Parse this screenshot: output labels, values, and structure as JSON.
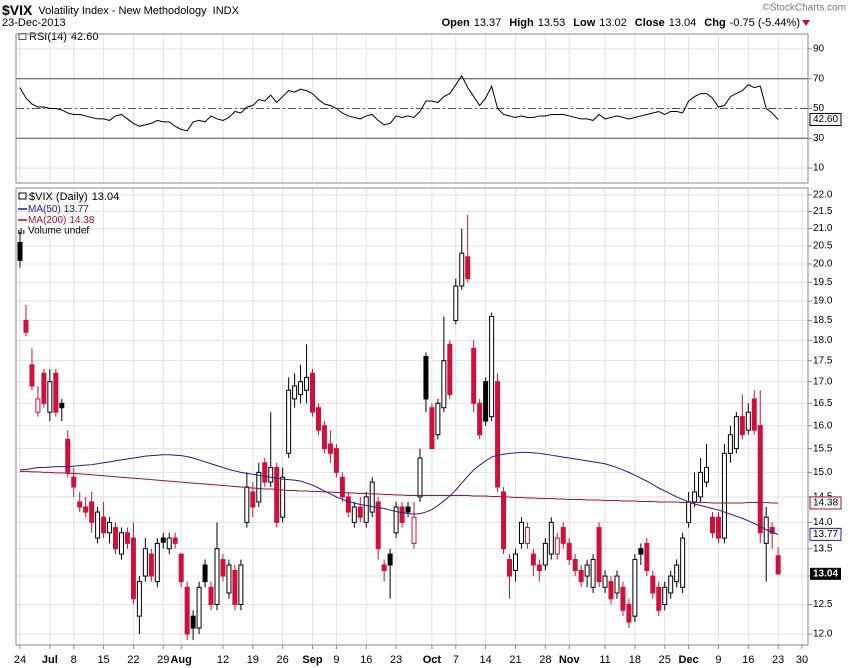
{
  "header": {
    "symbol": "$VIX",
    "name": "Volatility Index - New Methodology",
    "exchange": "INDX",
    "date": "23-Dec-2013",
    "copyright": "©StockCharts.com",
    "quote": [
      {
        "label": "Open",
        "value": "13.37"
      },
      {
        "label": "High",
        "value": "13.53"
      },
      {
        "label": "Low",
        "value": "13.02"
      },
      {
        "label": "Close",
        "value": "13.04"
      },
      {
        "label": "Chg",
        "value": "-0.75 (-5.44%)"
      }
    ]
  },
  "chart_data": [
    {
      "type": "line",
      "ylim": [
        0,
        100
      ],
      "yticks": [
        10,
        30,
        50,
        70,
        90
      ],
      "grid": true,
      "levels": [
        {
          "value": 30,
          "style": "solid"
        },
        {
          "value": 50,
          "style": "dashdot"
        },
        {
          "value": 70,
          "style": "solid"
        }
      ],
      "series": [
        {
          "name": "RSI(14)",
          "color": "#000000",
          "values": [
            64,
            57,
            53,
            51,
            51,
            50,
            50,
            49,
            47,
            46,
            46,
            45,
            44,
            43,
            43,
            42,
            45,
            46,
            43,
            40,
            38,
            39,
            40,
            42,
            41,
            41,
            38,
            36,
            35,
            41,
            42,
            41,
            45,
            43,
            42,
            44,
            48,
            47,
            51,
            52,
            56,
            55,
            59,
            54,
            58,
            62,
            61,
            63,
            62,
            60,
            56,
            53,
            52,
            50,
            47,
            45,
            44,
            43,
            45,
            46,
            42,
            39,
            40,
            45,
            44,
            45,
            44,
            48,
            55,
            55,
            54,
            58,
            60,
            66,
            72,
            64,
            58,
            52,
            57,
            65,
            50,
            46,
            45,
            44,
            45,
            44,
            44,
            45,
            45,
            46,
            46,
            46,
            45,
            44,
            43,
            43,
            42,
            46,
            43,
            44,
            45,
            44,
            43,
            44,
            45,
            46,
            47,
            48,
            46,
            48,
            48,
            47,
            55,
            58,
            60,
            60,
            57,
            51,
            52,
            58,
            60,
            62,
            66,
            64,
            65,
            50,
            47,
            42.6
          ],
          "value_labels": {
            "127": "42.60"
          }
        }
      ]
    },
    {
      "type": "candlestick",
      "title": "$VIX (Daily)",
      "volume_label": "Volume undef",
      "log_scale": true,
      "grid": true,
      "up_color": "#000000",
      "down_color": "#d0103a",
      "ylim": [
        11.82,
        22.21
      ],
      "yticks": [
        {
          "value": 12,
          "label": "12.0"
        },
        12.5,
        {
          "value": 13,
          "label": "13.0"
        },
        13.5,
        {
          "value": 14,
          "label": "14.0"
        },
        14.5,
        {
          "value": 15,
          "label": "15.0"
        },
        15.5,
        {
          "value": 16,
          "label": "16.0"
        },
        16.5,
        {
          "value": 17,
          "label": "17.0"
        },
        17.5,
        {
          "value": 18,
          "label": "18.0"
        },
        18.5,
        {
          "value": 19,
          "label": "19.0"
        },
        19.5,
        {
          "value": 20,
          "label": "20.0"
        },
        20.5,
        {
          "value": 21,
          "label": "21.0"
        },
        21.5,
        {
          "value": 22,
          "label": "22.0"
        }
      ],
      "xlim": [
        -0.67,
        132
      ],
      "xticks": [
        {
          "value": 0,
          "label": "24"
        },
        {
          "value": 5,
          "label": "Jul"
        },
        {
          "value": 9,
          "label": "8"
        },
        {
          "value": 14,
          "label": "15"
        },
        {
          "value": 19,
          "label": "22"
        },
        {
          "value": 24,
          "label": "29"
        },
        {
          "value": 27,
          "label": "Aug"
        },
        {
          "value": 34,
          "label": "12"
        },
        {
          "value": 39,
          "label": "19"
        },
        {
          "value": 44,
          "label": "26"
        },
        {
          "value": 49,
          "label": "Sep"
        },
        {
          "value": 53,
          "label": "9"
        },
        {
          "value": 58,
          "label": "16"
        },
        {
          "value": 63,
          "label": "23"
        },
        {
          "value": 69,
          "label": "Oct"
        },
        {
          "value": 73,
          "label": "7"
        },
        {
          "value": 78,
          "label": "14"
        },
        {
          "value": 83,
          "label": "21"
        },
        {
          "value": 88,
          "label": "28"
        },
        {
          "value": 92,
          "label": "Nov"
        },
        {
          "value": 98,
          "label": "11"
        },
        {
          "value": 103,
          "label": "18"
        },
        {
          "value": 108,
          "label": "25"
        },
        {
          "value": 112,
          "label": "Dec"
        },
        {
          "value": 117,
          "label": "9"
        },
        {
          "value": 122,
          "label": "16"
        },
        {
          "value": 127,
          "label": "23"
        },
        {
          "value": 131,
          "label": "30"
        }
      ],
      "open": [
        20.6,
        18.5,
        17.4,
        16.3,
        17.2,
        16.3,
        17.2,
        16.5,
        15.7,
        14.9,
        14.4,
        14.3,
        14.4,
        13.7,
        14.1,
        13.8,
        13.9,
        13.4,
        13.8,
        13.7,
        12.3,
        13.0,
        13.4,
        12.9,
        13.7,
        13.5,
        13.7,
        13.4,
        12.8,
        12.3,
        12.1,
        13.2,
        12.8,
        12.5,
        13.3,
        12.7,
        13.1,
        12.5,
        14.0,
        14.6,
        14.4,
        15.2,
        14.8,
        15.1,
        14.1,
        15.4,
        16.6,
        16.7,
        16.8,
        17.2,
        16.4,
        16.0,
        15.6,
        15.5,
        14.9,
        14.5,
        14.0,
        14.3,
        14.0,
        14.2,
        14.4,
        13.2,
        13.4,
        13.8,
        14.3,
        14.3,
        13.6,
        14.5,
        17.6,
        16.4,
        15.8,
        16.4,
        17.9,
        18.5,
        19.4,
        20.2,
        17.8,
        16.5,
        17.0,
        16.2,
        17.0,
        14.6,
        13.3,
        13.1,
        13.6,
        13.6,
        13.4,
        13.2,
        13.2,
        13.4,
        13.4,
        13.9,
        13.6,
        13.3,
        13.1,
        13.0,
        12.8,
        13.9,
        12.8,
        12.9,
        12.7,
        12.8,
        12.5,
        12.3,
        13.5,
        13.6,
        13.0,
        12.8,
        12.5,
        12.7,
        12.9,
        12.8,
        14.0,
        14.4,
        14.5,
        14.8,
        14.1,
        14.1,
        13.7,
        15.4,
        15.5,
        16.2,
        15.9,
        16.6,
        16.0,
        13.6,
        13.9,
        13.37
      ],
      "high": [
        20.9,
        18.9,
        17.8,
        16.9,
        17.3,
        17.3,
        17.3,
        16.6,
        15.9,
        15.1,
        14.6,
        14.5,
        14.6,
        14.3,
        14.4,
        14.1,
        14.0,
        13.9,
        13.9,
        14.0,
        13.0,
        13.7,
        13.5,
        13.7,
        13.8,
        13.8,
        13.8,
        13.4,
        12.9,
        12.4,
        12.9,
        13.3,
        12.9,
        14.0,
        13.4,
        13.3,
        13.2,
        13.3,
        15.0,
        14.8,
        15.2,
        15.3,
        16.3,
        15.2,
        15.1,
        17.1,
        17.2,
        17.4,
        17.9,
        17.3,
        16.5,
        16.1,
        15.9,
        15.6,
        15.0,
        14.6,
        14.4,
        14.5,
        14.6,
        14.9,
        14.5,
        13.3,
        13.5,
        14.4,
        14.4,
        14.4,
        14.4,
        15.5,
        17.7,
        16.5,
        16.6,
        18.6,
        18.0,
        19.6,
        21.0,
        21.4,
        18.0,
        16.6,
        17.1,
        18.7,
        17.2,
        14.7,
        13.4,
        13.5,
        14.1,
        14.0,
        13.5,
        13.3,
        13.7,
        14.1,
        13.8,
        14.0,
        13.7,
        13.4,
        13.2,
        13.3,
        13.4,
        14.0,
        13.1,
        13.0,
        13.1,
        12.9,
        12.6,
        13.4,
        13.6,
        13.7,
        13.1,
        12.9,
        12.9,
        13.1,
        13.3,
        13.8,
        14.6,
        15.0,
        15.3,
        15.6,
        14.2,
        14.2,
        15.6,
        16.0,
        16.3,
        16.7,
        16.5,
        16.8,
        16.8,
        14.3,
        14.0,
        13.53
      ],
      "low": [
        19.9,
        18.1,
        16.8,
        16.2,
        16.4,
        16.1,
        16.2,
        16.1,
        14.9,
        14.5,
        14.2,
        14.1,
        13.8,
        13.6,
        13.7,
        13.6,
        13.4,
        13.3,
        13.5,
        12.5,
        12.0,
        12.9,
        12.9,
        12.8,
        13.5,
        13.4,
        13.5,
        12.8,
        11.9,
        11.9,
        12.0,
        12.8,
        12.4,
        12.4,
        12.9,
        12.6,
        12.4,
        12.4,
        13.9,
        14.1,
        14.3,
        14.7,
        14.7,
        13.9,
        14.0,
        15.3,
        16.4,
        16.5,
        16.5,
        16.2,
        15.8,
        15.4,
        15.2,
        14.9,
        14.4,
        14.1,
        13.9,
        14.0,
        13.9,
        14.1,
        13.3,
        12.9,
        12.6,
        13.7,
        13.9,
        14.1,
        13.5,
        14.4,
        16.3,
        15.5,
        15.7,
        16.3,
        16.6,
        18.4,
        19.3,
        19.5,
        16.3,
        15.7,
        16.0,
        16.1,
        14.6,
        13.4,
        12.6,
        12.9,
        13.5,
        13.5,
        13.0,
        12.9,
        13.1,
        13.3,
        13.3,
        13.5,
        13.2,
        13.0,
        12.8,
        12.8,
        12.7,
        12.8,
        12.7,
        12.5,
        12.6,
        12.3,
        12.1,
        12.2,
        13.2,
        13.0,
        12.6,
        12.3,
        12.4,
        12.6,
        12.8,
        12.7,
        13.9,
        14.3,
        14.4,
        14.7,
        13.7,
        13.6,
        13.6,
        15.2,
        15.4,
        15.7,
        15.8,
        15.8,
        13.6,
        12.9,
        13.5,
        13.02
      ],
      "close": [
        20.1,
        18.2,
        16.9,
        16.6,
        16.5,
        17.0,
        16.3,
        16.4,
        15.0,
        14.7,
        14.3,
        14.2,
        14.0,
        14.2,
        13.8,
        14.0,
        13.5,
        13.8,
        13.6,
        12.6,
        12.9,
        13.5,
        13.0,
        13.6,
        13.62,
        13.7,
        13.6,
        12.9,
        12.0,
        12.1,
        12.8,
        12.9,
        12.5,
        13.5,
        13.0,
        13.2,
        12.5,
        13.2,
        14.7,
        14.3,
        15.0,
        14.8,
        15.1,
        14.0,
        14.9,
        16.8,
        16.9,
        17.0,
        17.1,
        16.3,
        15.9,
        15.5,
        15.4,
        15.0,
        14.5,
        14.2,
        14.3,
        14.1,
        14.5,
        14.8,
        13.5,
        13.1,
        13.2,
        14.3,
        14.0,
        14.2,
        14.1,
        15.3,
        16.6,
        15.5,
        16.5,
        17.5,
        16.7,
        19.4,
        20.3,
        19.6,
        16.5,
        15.8,
        16.1,
        18.6,
        14.7,
        13.5,
        13.0,
        13.4,
        14.0,
        13.9,
        13.2,
        13.1,
        13.6,
        14.0,
        13.7,
        13.6,
        13.3,
        13.1,
        12.9,
        13.2,
        13.3,
        12.9,
        13.0,
        12.6,
        13.0,
        12.4,
        12.2,
        13.3,
        13.4,
        13.1,
        12.7,
        12.4,
        12.8,
        13.0,
        13.2,
        13.7,
        14.4,
        14.6,
        15.0,
        15.1,
        13.8,
        13.7,
        15.4,
        15.8,
        16.2,
        15.8,
        16.3,
        15.9,
        13.8,
        14.1,
        13.79,
        13.04
      ],
      "series": [
        {
          "name": "MA(50)",
          "color": "#1c1c9c",
          "values": [
            15.05,
            15.06,
            15.08,
            15.1,
            15.1,
            15.11,
            15.12,
            15.12,
            15.12,
            15.13,
            15.14,
            15.15,
            15.16,
            15.18,
            15.2,
            15.22,
            15.24,
            15.26,
            15.28,
            15.3,
            15.32,
            15.34,
            15.35,
            15.36,
            15.37,
            15.37,
            15.36,
            15.35,
            15.33,
            15.3,
            15.26,
            15.22,
            15.18,
            15.14,
            15.1,
            15.06,
            15.03,
            15.0,
            14.98,
            14.96,
            14.94,
            14.92,
            14.9,
            14.88,
            14.86,
            14.85,
            14.84,
            14.82,
            14.78,
            14.74,
            14.68,
            14.62,
            14.56,
            14.5,
            14.45,
            14.41,
            14.38,
            14.35,
            14.33,
            14.31,
            14.29,
            14.27,
            14.24,
            14.21,
            14.19,
            14.17,
            14.16,
            14.17,
            14.2,
            14.25,
            14.33,
            14.42,
            14.52,
            14.64,
            14.78,
            14.92,
            15.05,
            15.15,
            15.24,
            15.32,
            15.36,
            15.38,
            15.4,
            15.41,
            15.42,
            15.42,
            15.41,
            15.4,
            15.38,
            15.36,
            15.34,
            15.32,
            15.3,
            15.28,
            15.26,
            15.24,
            15.22,
            15.2,
            15.18,
            15.14,
            15.1,
            15.05,
            15.0,
            14.94,
            14.88,
            14.82,
            14.75,
            14.68,
            14.62,
            14.56,
            14.5,
            14.45,
            14.4,
            14.36,
            14.33,
            14.3,
            14.27,
            14.24,
            14.2,
            14.16,
            14.12,
            14.08,
            14.03,
            13.98,
            13.92,
            13.86,
            13.81,
            13.77
          ]
        },
        {
          "name": "MA(200)",
          "color": "#a3122e",
          "values": [
            15.02,
            15.02,
            15.01,
            15.01,
            15.0,
            15.0,
            14.99,
            14.99,
            14.98,
            14.98,
            14.97,
            14.96,
            14.95,
            14.94,
            14.93,
            14.92,
            14.91,
            14.9,
            14.89,
            14.88,
            14.87,
            14.86,
            14.85,
            14.84,
            14.83,
            14.82,
            14.81,
            14.8,
            14.79,
            14.78,
            14.77,
            14.76,
            14.75,
            14.74,
            14.73,
            14.72,
            14.71,
            14.7,
            14.69,
            14.68,
            14.67,
            14.66,
            14.66,
            14.65,
            14.64,
            14.63,
            14.63,
            14.62,
            14.62,
            14.61,
            14.61,
            14.6,
            14.6,
            14.59,
            14.59,
            14.58,
            14.58,
            14.57,
            14.57,
            14.56,
            14.56,
            14.55,
            14.55,
            14.54,
            14.54,
            14.53,
            14.53,
            14.53,
            14.53,
            14.53,
            14.53,
            14.53,
            14.53,
            14.53,
            14.53,
            14.53,
            14.52,
            14.52,
            14.52,
            14.51,
            14.51,
            14.5,
            14.5,
            14.49,
            14.49,
            14.48,
            14.48,
            14.47,
            14.47,
            14.47,
            14.46,
            14.46,
            14.45,
            14.45,
            14.45,
            14.44,
            14.44,
            14.44,
            14.43,
            14.43,
            14.43,
            14.42,
            14.42,
            14.42,
            14.41,
            14.41,
            14.41,
            14.4,
            14.4,
            14.4,
            14.4,
            14.39,
            14.39,
            14.39,
            14.39,
            14.39,
            14.38,
            14.38,
            14.38,
            14.38,
            14.38,
            14.38,
            14.39,
            14.39,
            14.39,
            14.39,
            14.38,
            14.38
          ]
        }
      ]
    }
  ]
}
